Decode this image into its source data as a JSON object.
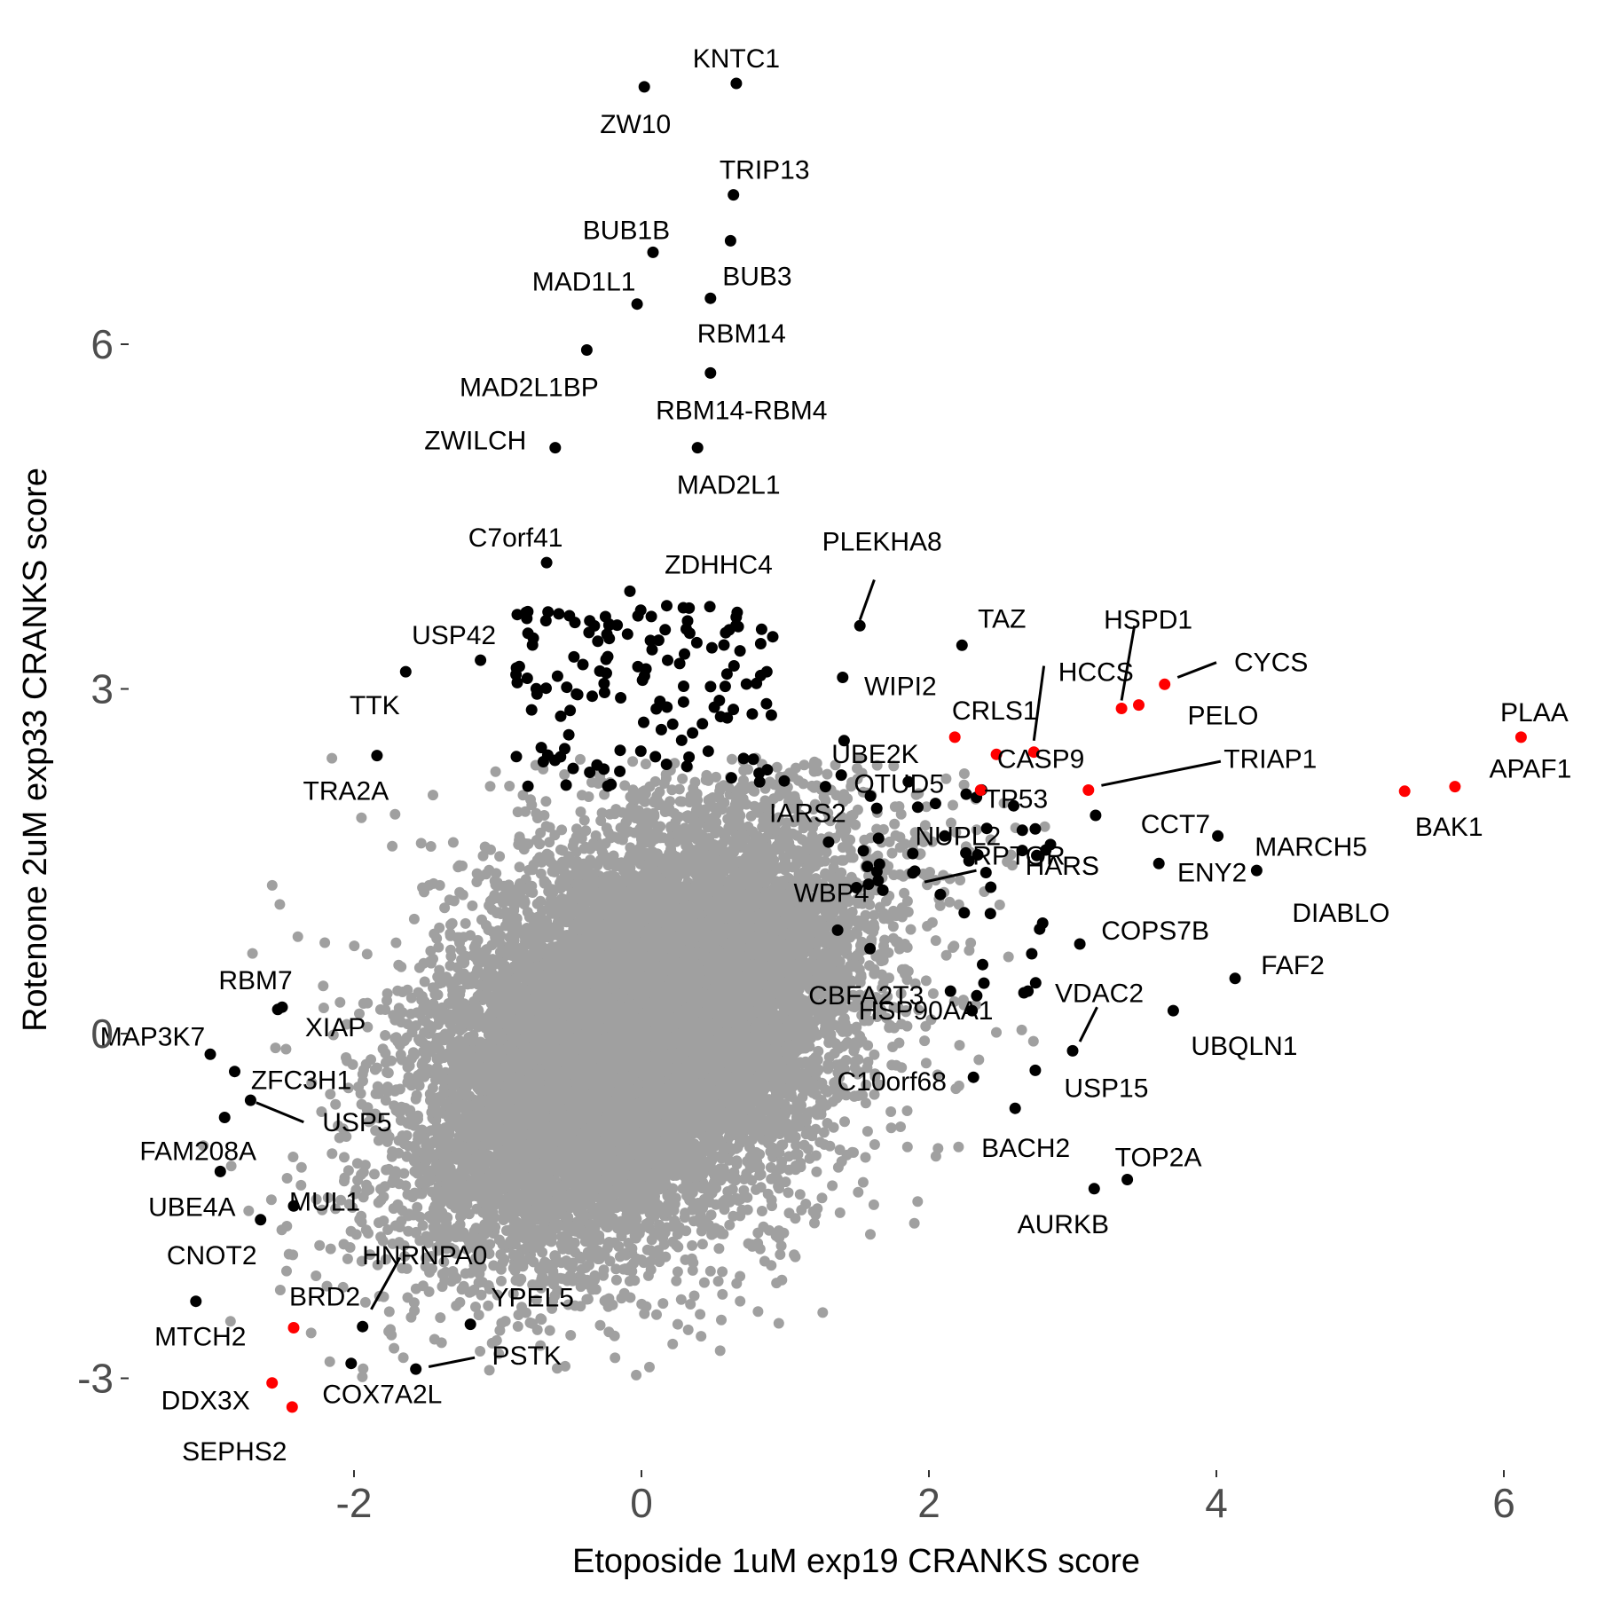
{
  "chart_data": {
    "type": "scatter",
    "title": "",
    "xlabel": "Etoposide 1uM exp19 CRANKS score",
    "ylabel": "Rotenone 2uM exp33 CRANKS score",
    "xlim": [
      -3.4,
      6.5
    ],
    "ylim": [
      -3.8,
      8.5
    ],
    "x_ticks": [
      -2,
      0,
      2,
      4,
      6
    ],
    "y_ticks": [
      -3,
      0,
      3,
      6
    ],
    "grid": false,
    "legend": "none",
    "colors": {
      "background": "#a0a0a0",
      "hit": "#000000",
      "highlight": "#ff0000"
    },
    "background_cloud": {
      "n": 14000,
      "mean": [
        0.0,
        0.0
      ],
      "sd": [
        0.72,
        0.9
      ],
      "correlation": 0.4,
      "color": "#a0a0a0"
    },
    "points": [
      {
        "label": "KNTC1",
        "x": 0.66,
        "y": 8.27,
        "color": "black"
      },
      {
        "label": "ZW10",
        "x": 0.02,
        "y": 8.24,
        "color": "black"
      },
      {
        "label": "TRIP13",
        "x": 0.64,
        "y": 7.3,
        "color": "black"
      },
      {
        "label": "BUB1B",
        "x": 0.08,
        "y": 6.8,
        "color": "black"
      },
      {
        "label": "BUB3",
        "x": 0.62,
        "y": 6.9,
        "color": "black"
      },
      {
        "label": "MAD1L1",
        "x": -0.03,
        "y": 6.35,
        "color": "black"
      },
      {
        "label": "RBM14",
        "x": 0.48,
        "y": 6.4,
        "color": "black"
      },
      {
        "label": "MAD2L1BP",
        "x": -0.38,
        "y": 5.95,
        "color": "black"
      },
      {
        "label": "RBM14-RBM4",
        "x": 0.48,
        "y": 5.75,
        "color": "black"
      },
      {
        "label": "ZWILCH",
        "x": -0.6,
        "y": 5.1,
        "color": "black"
      },
      {
        "label": "MAD2L1",
        "x": 0.39,
        "y": 5.1,
        "color": "black"
      },
      {
        "label": "C7orf41",
        "x": -0.66,
        "y": 4.1,
        "color": "black"
      },
      {
        "label": "ZDHHC4",
        "x": -0.08,
        "y": 3.85,
        "color": "black"
      },
      {
        "label": "PLEKHA8",
        "x": 1.52,
        "y": 3.55,
        "color": "black"
      },
      {
        "label": "USP42",
        "x": -1.12,
        "y": 3.25,
        "color": "black"
      },
      {
        "label": "TAZ",
        "x": 2.23,
        "y": 3.38,
        "color": "black"
      },
      {
        "label": "TTK",
        "x": -1.64,
        "y": 3.15,
        "color": "black"
      },
      {
        "label": "WIPI2",
        "x": 1.4,
        "y": 3.1,
        "color": "black"
      },
      {
        "label": "HCCS",
        "x": 2.73,
        "y": 2.45,
        "color": "red"
      },
      {
        "label": "HSPD1",
        "x": 3.34,
        "y": 2.83,
        "color": "red"
      },
      {
        "label": "PELO",
        "x": 3.46,
        "y": 2.86,
        "color": "red"
      },
      {
        "label": "CYCS",
        "x": 3.64,
        "y": 3.04,
        "color": "red"
      },
      {
        "label": "PLAA",
        "x": 6.12,
        "y": 2.58,
        "color": "red"
      },
      {
        "label": "UBE2K",
        "x": 1.41,
        "y": 2.55,
        "color": "black"
      },
      {
        "label": "CRLS1",
        "x": 2.18,
        "y": 2.58,
        "color": "red"
      },
      {
        "label": "TRA2A",
        "x": -1.84,
        "y": 2.42,
        "color": "black"
      },
      {
        "label": "CASP9",
        "x": 2.47,
        "y": 2.43,
        "color": "red"
      },
      {
        "label": "APAF1",
        "x": 5.66,
        "y": 2.15,
        "color": "red"
      },
      {
        "label": "OTUD5",
        "x": 1.39,
        "y": 2.25,
        "color": "black"
      },
      {
        "label": "TP53",
        "x": 2.36,
        "y": 2.12,
        "color": "red"
      },
      {
        "label": "TRIAP1",
        "x": 3.11,
        "y": 2.12,
        "color": "red"
      },
      {
        "label": "BAK1",
        "x": 5.31,
        "y": 2.11,
        "color": "red"
      },
      {
        "label": "CCT7",
        "x": 3.16,
        "y": 1.9,
        "color": "black"
      },
      {
        "label": "MARCH5",
        "x": 4.01,
        "y": 1.72,
        "color": "black"
      },
      {
        "label": "IARS2",
        "x": 1.28,
        "y": 2.15,
        "color": "black"
      },
      {
        "label": "NUPL2",
        "x": 2.11,
        "y": 1.72,
        "color": "black"
      },
      {
        "label": "HARS",
        "x": 2.65,
        "y": 1.77,
        "color": "black"
      },
      {
        "label": "ENY2",
        "x": 3.6,
        "y": 1.48,
        "color": "black"
      },
      {
        "label": "WBP4",
        "x": 1.58,
        "y": 1.3,
        "color": "black"
      },
      {
        "label": "RPTOR",
        "x": 2.75,
        "y": 1.55,
        "color": "black"
      },
      {
        "label": "DIABLO",
        "x": 4.28,
        "y": 1.42,
        "color": "black"
      },
      {
        "label": "COPS7B",
        "x": 3.05,
        "y": 0.78,
        "color": "black"
      },
      {
        "label": "FAF2",
        "x": 4.13,
        "y": 0.48,
        "color": "black"
      },
      {
        "label": "CBFA2T3",
        "x": 2.15,
        "y": 0.37,
        "color": "black"
      },
      {
        "label": "VDAC2",
        "x": 3.0,
        "y": -0.15,
        "color": "black"
      },
      {
        "label": "UBQLN1",
        "x": 3.7,
        "y": 0.2,
        "color": "black"
      },
      {
        "label": "HSP90AA1",
        "x": 2.3,
        "y": 0.2,
        "color": "black"
      },
      {
        "label": "C10orf68",
        "x": 2.31,
        "y": -0.38,
        "color": "black"
      },
      {
        "label": "USP15",
        "x": 2.74,
        "y": -0.32,
        "color": "black"
      },
      {
        "label": "BACH2",
        "x": 2.6,
        "y": -0.65,
        "color": "black"
      },
      {
        "label": "TOP2A",
        "x": 3.38,
        "y": -1.27,
        "color": "black"
      },
      {
        "label": "AURKB",
        "x": 3.15,
        "y": -1.35,
        "color": "black"
      },
      {
        "label": "RBM7",
        "x": -2.5,
        "y": 0.23,
        "color": "black"
      },
      {
        "label": "XIAP",
        "x": -2.53,
        "y": 0.21,
        "color": "black"
      },
      {
        "label": "MAP3K7",
        "x": -3.0,
        "y": -0.18,
        "color": "black"
      },
      {
        "label": "ZFC3H1",
        "x": -2.83,
        "y": -0.33,
        "color": "black"
      },
      {
        "label": "USP5",
        "x": -2.72,
        "y": -0.58,
        "color": "black"
      },
      {
        "label": "FAM208A",
        "x": -2.9,
        "y": -0.73,
        "color": "black"
      },
      {
        "label": "UBE4A",
        "x": -2.93,
        "y": -1.2,
        "color": "black"
      },
      {
        "label": "MUL1",
        "x": -2.42,
        "y": -1.5,
        "color": "black"
      },
      {
        "label": "CNOT2",
        "x": -2.65,
        "y": -1.62,
        "color": "black"
      },
      {
        "label": "HNRNPA0",
        "x": -1.94,
        "y": -2.55,
        "color": "black"
      },
      {
        "label": "BRD2",
        "x": -2.42,
        "y": -2.56,
        "color": "red"
      },
      {
        "label": "YPEL5",
        "x": -1.19,
        "y": -2.53,
        "color": "black"
      },
      {
        "label": "MTCH2",
        "x": -3.1,
        "y": -2.33,
        "color": "black"
      },
      {
        "label": "PSTK",
        "x": -1.57,
        "y": -2.92,
        "color": "black"
      },
      {
        "label": "COX7A2L",
        "x": -2.02,
        "y": -2.87,
        "color": "black"
      },
      {
        "label": "DDX3X",
        "x": -2.57,
        "y": -3.04,
        "color": "red"
      },
      {
        "label": "SEPHS2",
        "x": -2.43,
        "y": -3.25,
        "color": "red"
      }
    ]
  }
}
